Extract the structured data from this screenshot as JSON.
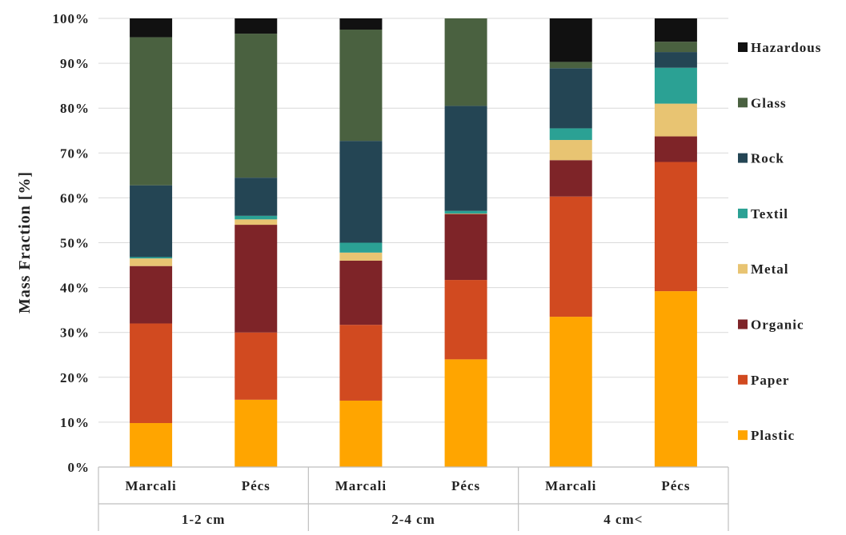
{
  "chart_data": {
    "type": "bar",
    "stacked": true,
    "ylabel": "Mass Fraction [%]",
    "xlabel": "",
    "ylim": [
      0,
      100
    ],
    "y_ticks": [
      "0%",
      "10%",
      "20%",
      "30%",
      "40%",
      "50%",
      "60%",
      "70%",
      "80%",
      "90%",
      "100%"
    ],
    "grid": "horizontal",
    "legend_position": "right",
    "categories": [
      "Marcali",
      "Pécs",
      "Marcali",
      "Pécs",
      "Marcali",
      "Pécs"
    ],
    "groups": [
      {
        "label": "1-2 cm",
        "categories": [
          "Marcali",
          "Pécs"
        ]
      },
      {
        "label": "2-4 cm",
        "categories": [
          "Marcali",
          "Pécs"
        ]
      },
      {
        "label": "4 cm<",
        "categories": [
          "Marcali",
          "Pécs"
        ]
      }
    ],
    "series": [
      {
        "name": "Plastic",
        "color": "#FFA500",
        "values": [
          9.8,
          15.0,
          14.8,
          24.0,
          33.5,
          39.2
        ]
      },
      {
        "name": "Paper",
        "color": "#D14A20",
        "values": [
          22.2,
          15.0,
          16.9,
          17.7,
          26.8,
          28.8
        ]
      },
      {
        "name": "Organic",
        "color": "#7E2428",
        "values": [
          12.8,
          24.0,
          14.3,
          14.7,
          8.1,
          5.7
        ]
      },
      {
        "name": "Metal",
        "color": "#E8C472",
        "values": [
          1.7,
          1.2,
          1.8,
          0.1,
          4.5,
          7.3
        ]
      },
      {
        "name": "Textil",
        "color": "#2BA194",
        "values": [
          0.3,
          0.8,
          2.2,
          0.6,
          2.6,
          8.0
        ]
      },
      {
        "name": "Rock",
        "color": "#244554",
        "values": [
          16.0,
          8.5,
          22.7,
          23.4,
          13.4,
          3.5
        ]
      },
      {
        "name": "Glass",
        "color": "#4A6140",
        "values": [
          33.0,
          32.1,
          24.8,
          19.5,
          1.4,
          2.3
        ]
      },
      {
        "name": "Hazardous",
        "color": "#111111",
        "values": [
          4.2,
          3.4,
          2.5,
          0.0,
          9.7,
          5.2
        ]
      }
    ]
  }
}
